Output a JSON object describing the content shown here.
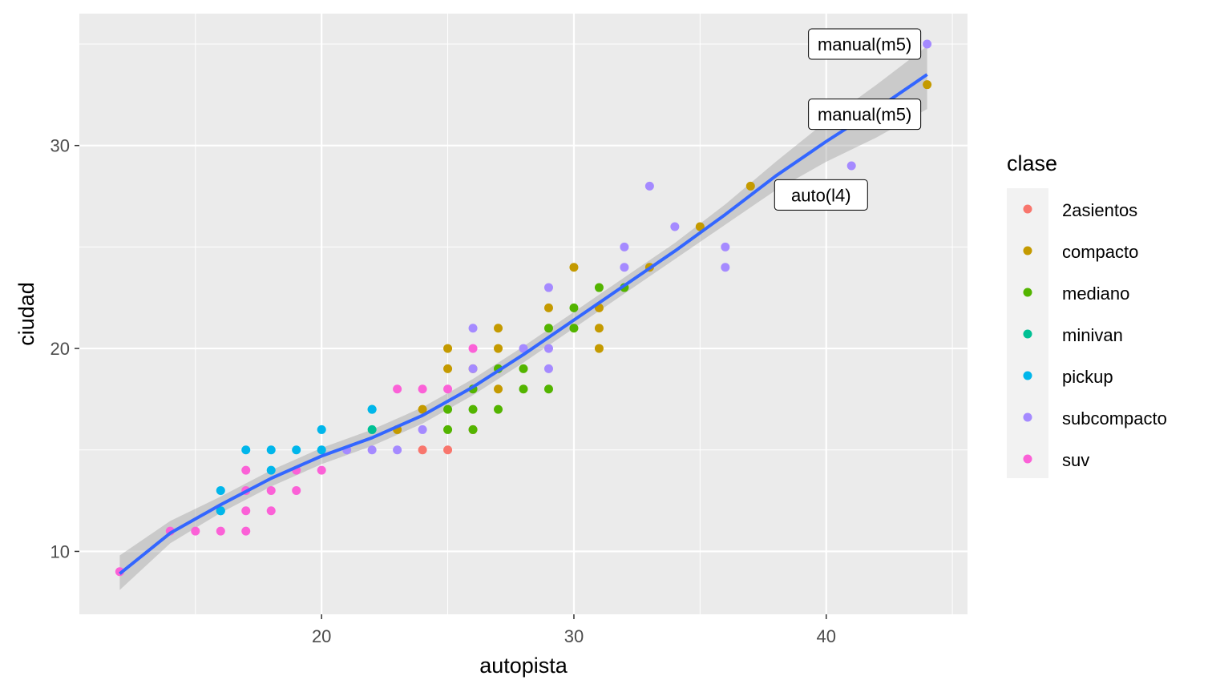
{
  "chart_data": {
    "type": "scatter",
    "title": "",
    "xlabel": "autopista",
    "ylabel": "ciudad",
    "xlim": [
      10.4,
      45.6
    ],
    "ylim": [
      6.9,
      36.5
    ],
    "xticks": [
      20,
      30,
      40
    ],
    "yticks": [
      10,
      20,
      30
    ],
    "xtick_labels": [
      "20",
      "30",
      "40"
    ],
    "ytick_labels": [
      "10",
      "20",
      "30"
    ],
    "grid": true,
    "legend": {
      "title": "clase",
      "placement": "right",
      "entries": [
        {
          "name": "2asientos",
          "color": "#F8766D"
        },
        {
          "name": "compacto",
          "color": "#C49A00"
        },
        {
          "name": "mediano",
          "color": "#53B400"
        },
        {
          "name": "minivan",
          "color": "#00C094"
        },
        {
          "name": "pickup",
          "color": "#00B6EB"
        },
        {
          "name": "subcompacto",
          "color": "#A58AFF"
        },
        {
          "name": "suv",
          "color": "#FB61D7"
        }
      ]
    },
    "series": [
      {
        "name": "2asientos",
        "color": "#F8766D",
        "points": [
          [
            24,
            15
          ],
          [
            25,
            15
          ],
          [
            26,
            16
          ]
        ]
      },
      {
        "name": "compacto",
        "color": "#C49A00",
        "points": [
          [
            23,
            16
          ],
          [
            24,
            17
          ],
          [
            25,
            19
          ],
          [
            25,
            20
          ],
          [
            26,
            19
          ],
          [
            27,
            18
          ],
          [
            27,
            20
          ],
          [
            27,
            21
          ],
          [
            29,
            22
          ],
          [
            30,
            24
          ],
          [
            31,
            20
          ],
          [
            31,
            21
          ],
          [
            31,
            22
          ],
          [
            33,
            24
          ],
          [
            35,
            26
          ],
          [
            37,
            28
          ],
          [
            44,
            33
          ]
        ]
      },
      {
        "name": "mediano",
        "color": "#53B400",
        "points": [
          [
            25,
            16
          ],
          [
            25,
            17
          ],
          [
            26,
            16
          ],
          [
            26,
            17
          ],
          [
            26,
            18
          ],
          [
            27,
            17
          ],
          [
            27,
            19
          ],
          [
            28,
            18
          ],
          [
            28,
            19
          ],
          [
            29,
            18
          ],
          [
            29,
            21
          ],
          [
            30,
            21
          ],
          [
            30,
            22
          ],
          [
            31,
            23
          ],
          [
            32,
            23
          ]
        ]
      },
      {
        "name": "minivan",
        "color": "#00C094",
        "points": [
          [
            16,
            12
          ],
          [
            22,
            16
          ],
          [
            22,
            17
          ]
        ]
      },
      {
        "name": "pickup",
        "color": "#00B6EB",
        "points": [
          [
            16,
            13
          ],
          [
            16,
            12
          ],
          [
            17,
            15
          ],
          [
            18,
            14
          ],
          [
            18,
            15
          ],
          [
            19,
            15
          ],
          [
            20,
            15
          ],
          [
            20,
            16
          ],
          [
            22,
            17
          ]
        ]
      },
      {
        "name": "subcompacto",
        "color": "#A58AFF",
        "points": [
          [
            21,
            15
          ],
          [
            22,
            15
          ],
          [
            23,
            15
          ],
          [
            24,
            16
          ],
          [
            26,
            19
          ],
          [
            26,
            21
          ],
          [
            28,
            20
          ],
          [
            29,
            19
          ],
          [
            29,
            20
          ],
          [
            29,
            23
          ],
          [
            32,
            24
          ],
          [
            32,
            25
          ],
          [
            33,
            28
          ],
          [
            34,
            26
          ],
          [
            36,
            24
          ],
          [
            36,
            25
          ],
          [
            41,
            29
          ],
          [
            44,
            35
          ]
        ]
      },
      {
        "name": "suv",
        "color": "#FB61D7",
        "points": [
          [
            12,
            9
          ],
          [
            14,
            11
          ],
          [
            15,
            11
          ],
          [
            16,
            11
          ],
          [
            17,
            11
          ],
          [
            17,
            12
          ],
          [
            17,
            13
          ],
          [
            17,
            14
          ],
          [
            18,
            12
          ],
          [
            18,
            13
          ],
          [
            19,
            13
          ],
          [
            19,
            14
          ],
          [
            20,
            14
          ],
          [
            23,
            18
          ],
          [
            24,
            18
          ],
          [
            25,
            18
          ],
          [
            26,
            20
          ]
        ]
      }
    ],
    "smooth": {
      "method": "loess",
      "color": "#3366FF",
      "x": [
        12,
        14,
        16,
        18,
        20,
        22,
        24,
        26,
        28,
        30,
        32,
        34,
        36,
        38,
        40,
        42,
        44
      ],
      "y": [
        8.9,
        10.9,
        12.3,
        13.6,
        14.7,
        15.6,
        16.7,
        18.1,
        19.7,
        21.4,
        23.1,
        24.8,
        26.6,
        28.5,
        30.2,
        31.8,
        33.5
      ],
      "ci_low": [
        8.1,
        10.4,
        11.9,
        13.2,
        14.3,
        15.2,
        16.3,
        17.7,
        19.3,
        21.0,
        22.7,
        24.4,
        26.1,
        27.8,
        29.2,
        30.4,
        31.8
      ],
      "ci_high": [
        9.8,
        11.5,
        12.7,
        14.0,
        15.1,
        16.0,
        17.1,
        18.5,
        20.1,
        21.8,
        23.5,
        25.2,
        27.1,
        29.2,
        31.2,
        33.0,
        34.9
      ]
    },
    "annotations": [
      {
        "label": "manual(m5)",
        "x": 44,
        "y": 35
      },
      {
        "label": "manual(m5)",
        "x": 44,
        "y": 33
      },
      {
        "label": "auto(l4)",
        "x": 37,
        "y": 28
      }
    ]
  }
}
